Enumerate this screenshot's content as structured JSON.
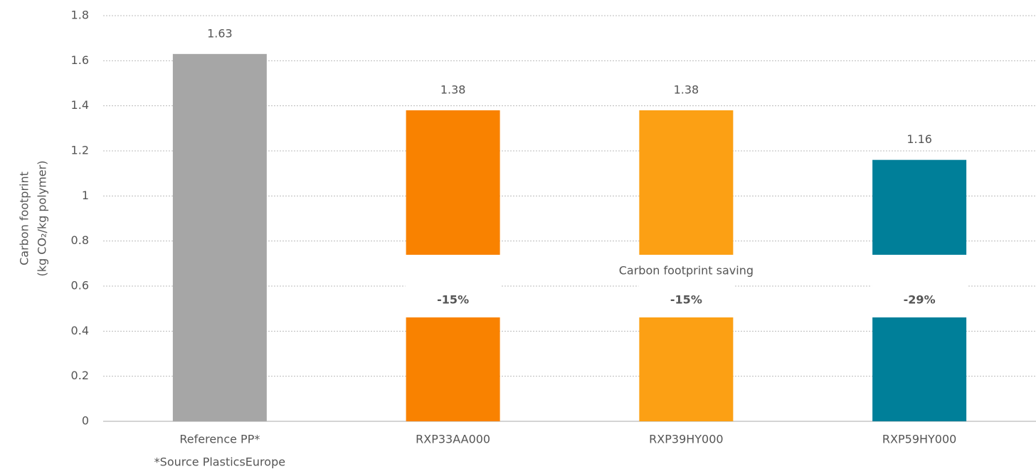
{
  "chart_data": {
    "type": "bar",
    "categories": [
      "Reference PP*",
      "RXP33AA000",
      "RXP39HY000",
      "RXP59HY000"
    ],
    "values": [
      1.63,
      1.38,
      1.38,
      1.16
    ],
    "colors": [
      "#a6a6a6",
      "#f98200",
      "#fca014",
      "#007f99"
    ],
    "value_label_colors": [
      "#f98200",
      "#707070",
      "#707070",
      "#707070"
    ],
    "ylabel": [
      "Carbon footprint",
      "(kg CO₂/kg polymer)"
    ],
    "ylim": [
      0,
      1.8
    ],
    "yticks": [
      0,
      0.2,
      0.4,
      0.6,
      0.8,
      1,
      1.2,
      1.4,
      1.6,
      1.8
    ],
    "grid": true,
    "annotation": "Carbon footprint saving",
    "savings_labels": [
      null,
      "-15%",
      "-15%",
      "-29%"
    ],
    "footnote": "*Source PlasticsEurope"
  }
}
